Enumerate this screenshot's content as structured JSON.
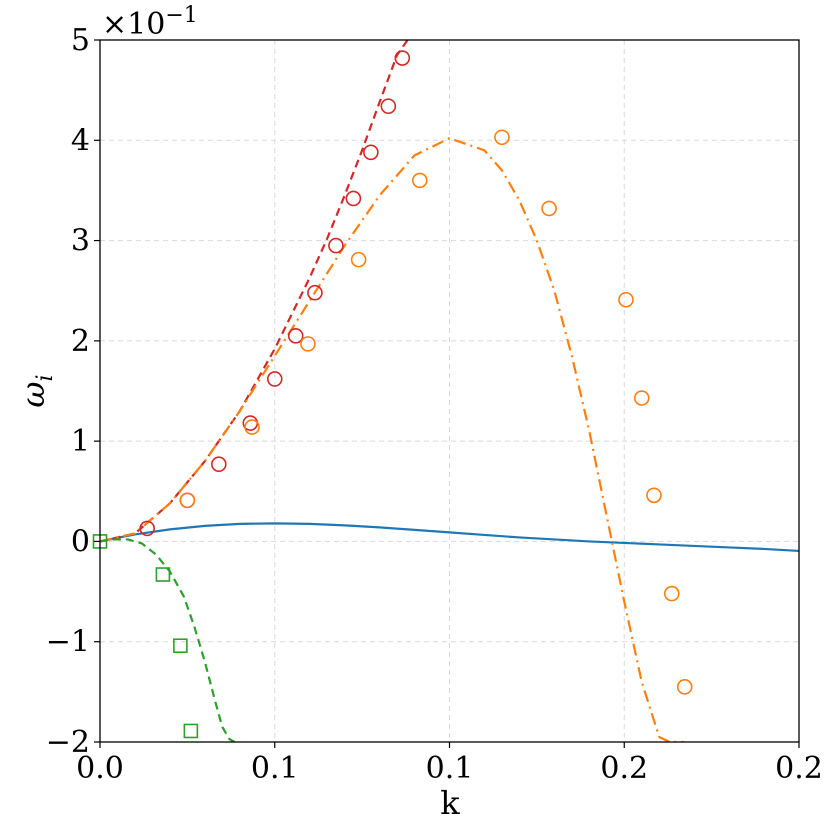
{
  "chart_data": {
    "type": "line",
    "xlabel": "k",
    "ylabel": "ω",
    "ylabel_sub": "i",
    "y_exponent_label": "×10",
    "y_exponent_power": "−1",
    "xlim": [
      0,
      0.2
    ],
    "ylim": [
      -2,
      5
    ],
    "x_ticks": [
      {
        "value": 0.0,
        "label": "0.0"
      },
      {
        "value": 0.05,
        "label": "0.1"
      },
      {
        "value": 0.1,
        "label": "0.1"
      },
      {
        "value": 0.15,
        "label": "0.2"
      },
      {
        "value": 0.2,
        "label": "0.2"
      }
    ],
    "y_ticks": [
      {
        "value": -2,
        "label": "−2"
      },
      {
        "value": -1,
        "label": "−1"
      },
      {
        "value": 0,
        "label": "0"
      },
      {
        "value": 1,
        "label": "1"
      },
      {
        "value": 2,
        "label": "2"
      },
      {
        "value": 3,
        "label": "3"
      },
      {
        "value": 4,
        "label": "4"
      },
      {
        "value": 5,
        "label": "5"
      }
    ],
    "grid": true,
    "series": [
      {
        "color": "#1f77b4",
        "line_style": "solid",
        "marker": "none",
        "x": [
          0,
          0.01,
          0.02,
          0.03,
          0.04,
          0.05,
          0.06,
          0.07,
          0.08,
          0.09,
          0.1,
          0.11,
          0.12,
          0.13,
          0.14,
          0.15,
          0.16,
          0.17,
          0.18,
          0.19,
          0.2
        ],
        "y": [
          0,
          0.07,
          0.12,
          0.155,
          0.175,
          0.18,
          0.175,
          0.16,
          0.14,
          0.115,
          0.09,
          0.065,
          0.04,
          0.02,
          0.0,
          -0.015,
          -0.03,
          -0.045,
          -0.06,
          -0.075,
          -0.095
        ]
      },
      {
        "color": "#d62728",
        "line_style": "dashed",
        "marker": "circle",
        "x": [
          0,
          0.01,
          0.02,
          0.03,
          0.04,
          0.05,
          0.06,
          0.065,
          0.07,
          0.075,
          0.08,
          0.085,
          0.088
        ],
        "y": [
          0,
          0.08,
          0.38,
          0.8,
          1.3,
          1.92,
          2.63,
          3.02,
          3.45,
          3.9,
          4.38,
          4.85,
          5.0
        ],
        "markers_x": [
          0.0135,
          0.025,
          0.034,
          0.043,
          0.05,
          0.056,
          0.0615,
          0.0675,
          0.0725,
          0.0775,
          0.0825,
          0.0865
        ],
        "markers_y": [
          0.13,
          0.41,
          0.77,
          1.18,
          1.62,
          2.05,
          2.48,
          2.95,
          3.42,
          3.88,
          4.34,
          4.82
        ]
      },
      {
        "color": "#ff7f0e",
        "line_style": "dashdot",
        "marker": "circle",
        "x": [
          0,
          0.01,
          0.02,
          0.03,
          0.04,
          0.05,
          0.06,
          0.07,
          0.08,
          0.09,
          0.1,
          0.11,
          0.115,
          0.12,
          0.125,
          0.13,
          0.135,
          0.14,
          0.145,
          0.15,
          0.155,
          0.16,
          0.163,
          0.167
        ],
        "y": [
          0,
          0.08,
          0.38,
          0.8,
          1.3,
          1.85,
          2.4,
          2.95,
          3.45,
          3.85,
          4.02,
          3.9,
          3.7,
          3.4,
          3.0,
          2.5,
          1.85,
          1.1,
          0.25,
          -0.6,
          -1.4,
          -1.95,
          -2.0,
          -2.0
        ],
        "markers_x": [
          0.025,
          0.0435,
          0.0595,
          0.074,
          0.0915,
          0.115,
          0.1285,
          0.1505,
          0.155,
          0.1585,
          0.1636,
          0.1673
        ],
        "markers_y": [
          0.41,
          1.14,
          1.97,
          2.81,
          3.6,
          4.03,
          3.32,
          2.41,
          1.43,
          0.46,
          -0.52,
          -1.45
        ]
      },
      {
        "color": "#2ca02c",
        "line_style": "dashed",
        "marker": "square",
        "x": [
          0,
          0.004,
          0.008,
          0.012,
          0.016,
          0.02,
          0.024,
          0.027,
          0.03,
          0.033,
          0.035,
          0.037,
          0.0385
        ],
        "y": [
          0,
          0.02,
          0.02,
          -0.02,
          -0.13,
          -0.3,
          -0.55,
          -0.85,
          -1.2,
          -1.6,
          -1.85,
          -1.97,
          -2.0
        ],
        "markers_x": [
          0.0,
          0.018,
          0.023,
          0.026
        ],
        "markers_y": [
          0.0,
          -0.33,
          -1.04,
          -1.89
        ]
      }
    ]
  }
}
